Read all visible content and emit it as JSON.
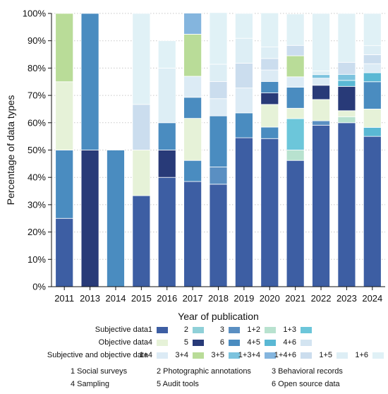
{
  "chart_data": {
    "type": "bar",
    "stacked": true,
    "xlabel": "Year of publication",
    "ylabel": "Percentage of data types",
    "ylim": [
      0,
      100
    ],
    "yticks": [
      "0%",
      "10%",
      "20%",
      "30%",
      "40%",
      "50%",
      "60%",
      "70%",
      "80%",
      "90%",
      "100%"
    ],
    "grid": "horizontal dotted",
    "categories": [
      "2011",
      "2013",
      "2014",
      "2015",
      "2016",
      "2017",
      "2018",
      "2019",
      "2020",
      "2021",
      "2022",
      "2023",
      "2024"
    ],
    "series": [
      {
        "name": "1",
        "color": "#3d5ea3",
        "values": [
          25,
          0,
          0,
          33.3,
          40,
          38.5,
          37.5,
          54.5,
          54.2,
          46.2,
          59.1,
          60,
          55
        ]
      },
      {
        "name": "2",
        "color": "#8fd0d8",
        "values": [
          0,
          0,
          0,
          0,
          0,
          0,
          0,
          0,
          0,
          0,
          0,
          0,
          0
        ]
      },
      {
        "name": "3",
        "color": "#5a8fc2",
        "values": [
          0,
          0,
          0,
          0,
          0,
          0,
          6.3,
          0,
          0,
          0,
          1.6,
          0,
          0
        ]
      },
      {
        "name": "1+2",
        "color": "#b8e2cf",
        "values": [
          0,
          0,
          0,
          0,
          0,
          0,
          0,
          0,
          0,
          3.8,
          0,
          2.2,
          0
        ]
      },
      {
        "name": "1+3",
        "color": "#6cc6da",
        "values": [
          0,
          0,
          0,
          0,
          0,
          0,
          0,
          0,
          0,
          11.5,
          0,
          0,
          0
        ]
      },
      {
        "name": "4",
        "color": "#e6f2d8",
        "values": [
          0,
          0,
          0,
          0,
          0,
          0,
          0,
          0,
          0,
          0,
          0,
          2.2,
          0
        ]
      },
      {
        "name": "5",
        "color": "#283a78",
        "values": [
          0,
          50,
          0,
          0,
          10,
          0,
          0,
          0,
          0,
          0,
          0,
          0,
          0
        ]
      },
      {
        "name": "6",
        "color": "#4a8cc0",
        "values": [
          25,
          0,
          50,
          0,
          10,
          7.7,
          0,
          9.1,
          4.2,
          0,
          0,
          0,
          0
        ]
      },
      {
        "name": "4+5",
        "color": "#5ab8d4",
        "values": [
          0,
          0,
          0,
          0,
          0,
          0,
          0,
          0,
          0,
          0,
          0,
          0,
          3.3
        ]
      },
      {
        "name": "4+6",
        "color": "#d3e4f1",
        "values": [
          0,
          0,
          0,
          0,
          0,
          0,
          0,
          0,
          0,
          0,
          0,
          0,
          0
        ]
      },
      {
        "name": "Obj-4",
        "color": "#e6f2d8",
        "values": [
          25,
          0,
          0,
          16.7,
          0,
          15.4,
          0,
          0,
          8.3,
          3.8,
          7.8,
          0,
          6.7
        ]
      },
      {
        "name": "Obj-5",
        "color": "#283a78",
        "values": [
          0,
          0,
          0,
          0,
          0,
          0,
          0,
          0,
          4.2,
          0,
          5.2,
          8.9,
          0
        ]
      },
      {
        "name": "Obj-6",
        "color": "#4a8cc0",
        "values": [
          0,
          50,
          0,
          0,
          0,
          7.7,
          18.7,
          0,
          4.2,
          7.7,
          0,
          0,
          10
        ]
      },
      {
        "name": "Obj-4+5",
        "color": "#5ab8d4",
        "values": [
          0,
          0,
          0,
          0,
          0,
          0,
          0,
          0,
          0,
          0,
          0,
          2.2,
          3.3
        ]
      },
      {
        "name": "Obj-4+6",
        "color": "#d3e4f1",
        "values": [
          0,
          0,
          0,
          0,
          0,
          0,
          0,
          0,
          0,
          0,
          0,
          0,
          0
        ]
      },
      {
        "name": "1+4",
        "color": "#dcebf5",
        "values": [
          0,
          0,
          0,
          0,
          0,
          7.7,
          6.3,
          9.1,
          4.2,
          3.8,
          2.6,
          0,
          3.3
        ]
      },
      {
        "name": "3+4",
        "color": "#b9dc98",
        "values": [
          25,
          0,
          0,
          0,
          0,
          15.4,
          0,
          0,
          0,
          7.7,
          0,
          0,
          0
        ]
      },
      {
        "name": "3+5",
        "color": "#7cc3de",
        "values": [
          0,
          0,
          0,
          0,
          0,
          0,
          0,
          0,
          0,
          0,
          1.3,
          2.2,
          0
        ]
      },
      {
        "name": "1+3+4",
        "color": "#84b5de",
        "values": [
          0,
          0,
          0,
          0,
          0,
          7.7,
          0,
          0,
          0,
          0,
          0,
          0,
          0
        ]
      },
      {
        "name": "1+4+6",
        "color": "#cbddee",
        "values": [
          0,
          0,
          0,
          16.7,
          0,
          0,
          6.3,
          9.1,
          4.2,
          3.8,
          0,
          4.4,
          3.3
        ]
      },
      {
        "name": "1+5",
        "color": "#ddeef5",
        "values": [
          0,
          0,
          0,
          0,
          20,
          0,
          6.3,
          9.1,
          4.2,
          0,
          1.3,
          0,
          3.3
        ]
      },
      {
        "name": "1+6",
        "color": "#e0f1f6",
        "values": [
          0,
          0,
          0,
          33.3,
          10,
          0,
          18.9,
          9.1,
          12.5,
          11.5,
          21.1,
          17.9,
          11.8
        ]
      }
    ]
  },
  "legend": {
    "rows": [
      {
        "label": "Subjective data",
        "items": [
          {
            "name": "1",
            "color": "#3d5ea3"
          },
          {
            "name": "2",
            "color": "#8fd0d8"
          },
          {
            "name": "3",
            "color": "#5a8fc2"
          },
          {
            "name": "1+2",
            "color": "#b8e2cf"
          },
          {
            "name": "1+3",
            "color": "#6cc6da"
          }
        ]
      },
      {
        "label": "Objective data",
        "items": [
          {
            "name": "4",
            "color": "#e6f2d8"
          },
          {
            "name": "5",
            "color": "#283a78"
          },
          {
            "name": "6",
            "color": "#4a8cc0"
          },
          {
            "name": "4+5",
            "color": "#5ab8d4"
          },
          {
            "name": "4+6",
            "color": "#d3e4f1"
          }
        ]
      },
      {
        "label": "Subjective and objective data",
        "items": [
          {
            "name": "1+4",
            "color": "#dcebf5"
          },
          {
            "name": "3+4",
            "color": "#b9dc98"
          },
          {
            "name": "3+5",
            "color": "#7cc3de"
          },
          {
            "name": "1+3+4",
            "color": "#84b5de"
          },
          {
            "name": "1+4+6",
            "color": "#cbddee"
          },
          {
            "name": "1+5",
            "color": "#ddeef5"
          },
          {
            "name": "1+6",
            "color": "#e0f1f6"
          }
        ]
      }
    ],
    "notes": [
      "1 Social surveys",
      "2 Photographic annotations",
      "3 Behavioral records",
      "4 Sampling",
      "5 Audit tools",
      "6 Open source data"
    ]
  }
}
